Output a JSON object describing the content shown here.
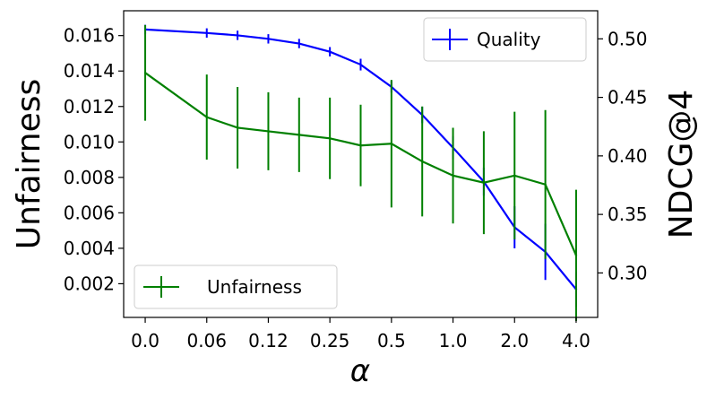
{
  "chart_data": {
    "type": "line",
    "x_tick_labels": [
      "0.0",
      "0.06",
      "0.12",
      "0.25",
      "0.5",
      "1.0",
      "2.0",
      "4.0"
    ],
    "x_tick_positions": [
      0,
      2,
      4,
      6,
      8,
      10,
      12,
      14
    ],
    "xlabel": "α",
    "ylabel_left": "Unfairness",
    "ylabel_right": "NDCG@4",
    "ylim_left": [
      0.0001,
      0.0174
    ],
    "ylim_right": [
      0.262,
      0.524
    ],
    "yticks_left": [
      "0.002",
      "0.004",
      "0.006",
      "0.008",
      "0.010",
      "0.012",
      "0.014",
      "0.016"
    ],
    "yticks_left_values": [
      0.002,
      0.004,
      0.006,
      0.008,
      0.01,
      0.012,
      0.014,
      0.016
    ],
    "yticks_right": [
      "0.30",
      "0.35",
      "0.40",
      "0.45",
      "0.50"
    ],
    "yticks_right_values": [
      0.3,
      0.35,
      0.4,
      0.45,
      0.5
    ],
    "series": [
      {
        "name": "Quality",
        "axis": "right",
        "color": "#0000ff",
        "x": [
          0,
          2,
          3,
          4,
          5,
          6,
          7,
          8,
          9,
          10,
          11,
          12,
          13,
          14
        ],
        "values": [
          0.508,
          0.505,
          0.503,
          0.5,
          0.496,
          0.489,
          0.478,
          0.459,
          0.435,
          0.407,
          0.378,
          0.339,
          0.318,
          0.286
        ],
        "errors": [
          0.004,
          0.004,
          0.004,
          0.004,
          0.004,
          0.004,
          0.005,
          0.005,
          0.007,
          0.01,
          0.012,
          0.018,
          0.024,
          0.015
        ]
      },
      {
        "name": "Unfairness",
        "axis": "left",
        "color": "#008000",
        "x": [
          0,
          2,
          3,
          4,
          5,
          6,
          7,
          8,
          9,
          10,
          11,
          12,
          13,
          14
        ],
        "values": [
          0.0139,
          0.0114,
          0.0108,
          0.0106,
          0.0104,
          0.0102,
          0.0098,
          0.0099,
          0.0089,
          0.0081,
          0.0077,
          0.0081,
          0.0076,
          0.0036
        ],
        "errors": [
          0.0027,
          0.0024,
          0.0023,
          0.0022,
          0.0021,
          0.0023,
          0.0023,
          0.0036,
          0.0031,
          0.0027,
          0.0029,
          0.0036,
          0.0042,
          0.0037
        ]
      }
    ],
    "legends": [
      {
        "label": "Quality",
        "placement": "upper-right"
      },
      {
        "label": "Unfairness",
        "placement": "lower-left"
      }
    ],
    "grid": false
  }
}
